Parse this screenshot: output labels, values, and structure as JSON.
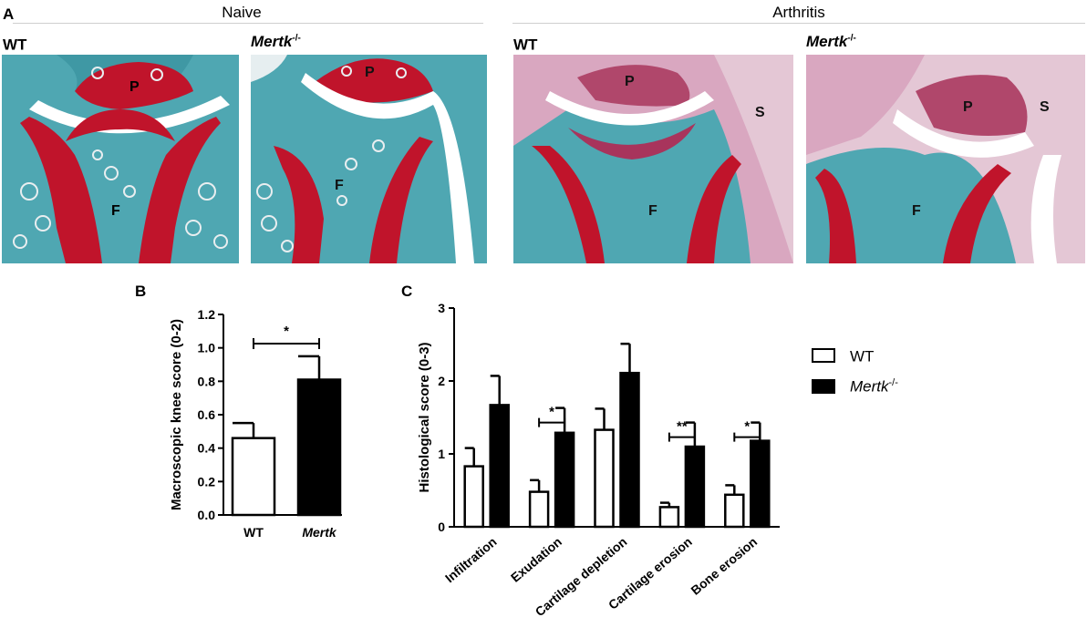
{
  "panel_a": {
    "letter": "A",
    "groups": [
      {
        "title": "Naive"
      },
      {
        "title": "Arthritis"
      }
    ],
    "images": [
      {
        "label": "WT",
        "label_italic": "",
        "sup": "",
        "markers": [
          "P",
          "F"
        ]
      },
      {
        "label": "",
        "label_italic": "Mertk",
        "sup": "-/-",
        "markers": [
          "P",
          "F"
        ]
      },
      {
        "label": "WT",
        "label_italic": "",
        "sup": "",
        "markers": [
          "P",
          "S",
          "F"
        ]
      },
      {
        "label": "",
        "label_italic": "Mertk",
        "sup": "-/-",
        "markers": [
          "P",
          "S",
          "F"
        ]
      }
    ]
  },
  "panel_b": {
    "letter": "B"
  },
  "panel_c": {
    "letter": "C"
  },
  "legend": [
    {
      "label": "WT",
      "label_italic": "",
      "sup": "",
      "fill": "#ffffff"
    },
    {
      "label": "",
      "label_italic": "Mertk",
      "sup": "-/-",
      "fill": "#000000"
    }
  ],
  "colors": {
    "stroke": "#000000",
    "wt_fill": "#ffffff",
    "ko_fill": "#000000",
    "tissue_cyan": "#4fa7b2",
    "cartilage_red": "#c0142b",
    "synovium_pink": "#d9a7c0"
  },
  "chart_data": [
    {
      "type": "bar",
      "title": "",
      "ylabel": "Macroscopic knee score (0-2)",
      "xlabel": "",
      "categories": [
        "WT",
        "Mertk"
      ],
      "category_sup": [
        "",
        "-/-"
      ],
      "category_italic": [
        false,
        true
      ],
      "values": [
        0.46,
        0.81
      ],
      "errors": [
        0.09,
        0.14
      ],
      "ylim": [
        0,
        1.2
      ],
      "yticks": [
        "0.0",
        "0.2",
        "0.4",
        "0.6",
        "0.8",
        "1.0",
        "1.2"
      ],
      "significance": [
        {
          "from": 0,
          "to": 1,
          "label": "*"
        }
      ]
    },
    {
      "type": "bar",
      "title": "",
      "ylabel": "Histological score (0-3)",
      "xlabel": "",
      "categories": [
        "Infiltration",
        "Exudation",
        "Cartilage depletion",
        "Cartilage erosion",
        "Bone erosion"
      ],
      "series": [
        {
          "name": "WT",
          "values": [
            0.83,
            0.48,
            1.33,
            0.27,
            0.44
          ],
          "errors": [
            0.25,
            0.16,
            0.29,
            0.06,
            0.13
          ]
        },
        {
          "name": "Mertk-/-",
          "values": [
            1.67,
            1.29,
            2.11,
            1.1,
            1.18
          ],
          "errors": [
            0.4,
            0.34,
            0.4,
            0.33,
            0.25
          ]
        }
      ],
      "ylim": [
        0,
        3
      ],
      "yticks": [
        "0",
        "1",
        "2",
        "3"
      ],
      "significance": [
        {
          "category": 1,
          "label": "*"
        },
        {
          "category": 3,
          "label": "**"
        },
        {
          "category": 4,
          "label": "*"
        }
      ]
    }
  ]
}
